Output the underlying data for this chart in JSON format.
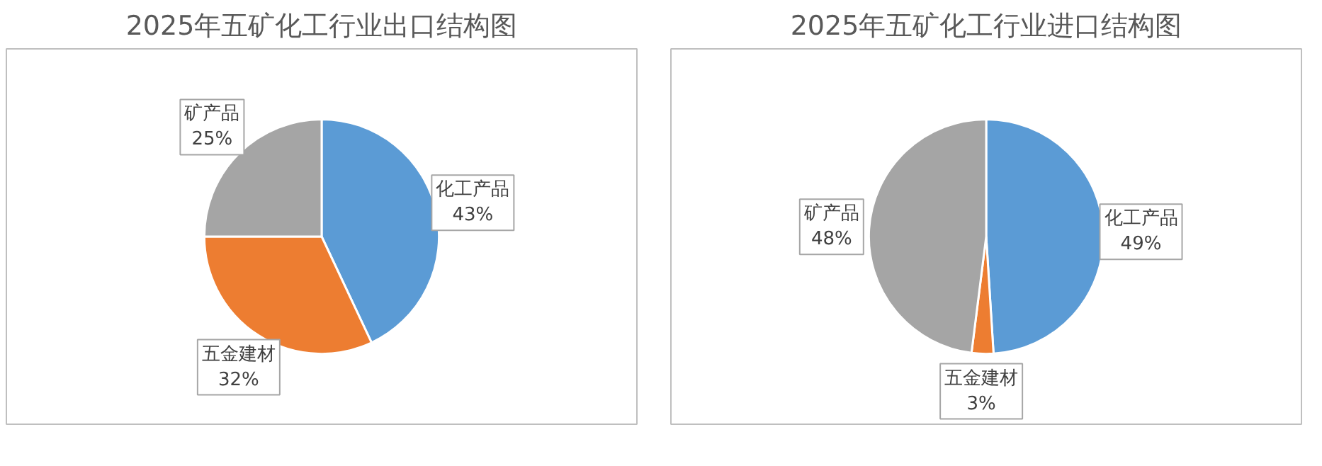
{
  "chart_data": [
    {
      "type": "pie",
      "title": "2025年五矿化工行业出口结构图",
      "categories": [
        "化工产品",
        "五金建材",
        "矿产品"
      ],
      "values": [
        43,
        32,
        25
      ],
      "value_labels": [
        "43%",
        "32%",
        "25%"
      ],
      "colors": [
        "#5b9bd5",
        "#ed7d31",
        "#a5a5a5"
      ],
      "legend": false
    },
    {
      "type": "pie",
      "title": "2025年五矿化工行业进口结构图",
      "categories": [
        "化工产品",
        "五金建材",
        "矿产品"
      ],
      "values": [
        49,
        3,
        48
      ],
      "value_labels": [
        "49%",
        "3%",
        "48%"
      ],
      "colors": [
        "#5b9bd5",
        "#ed7d31",
        "#a5a5a5"
      ],
      "legend": false
    }
  ]
}
